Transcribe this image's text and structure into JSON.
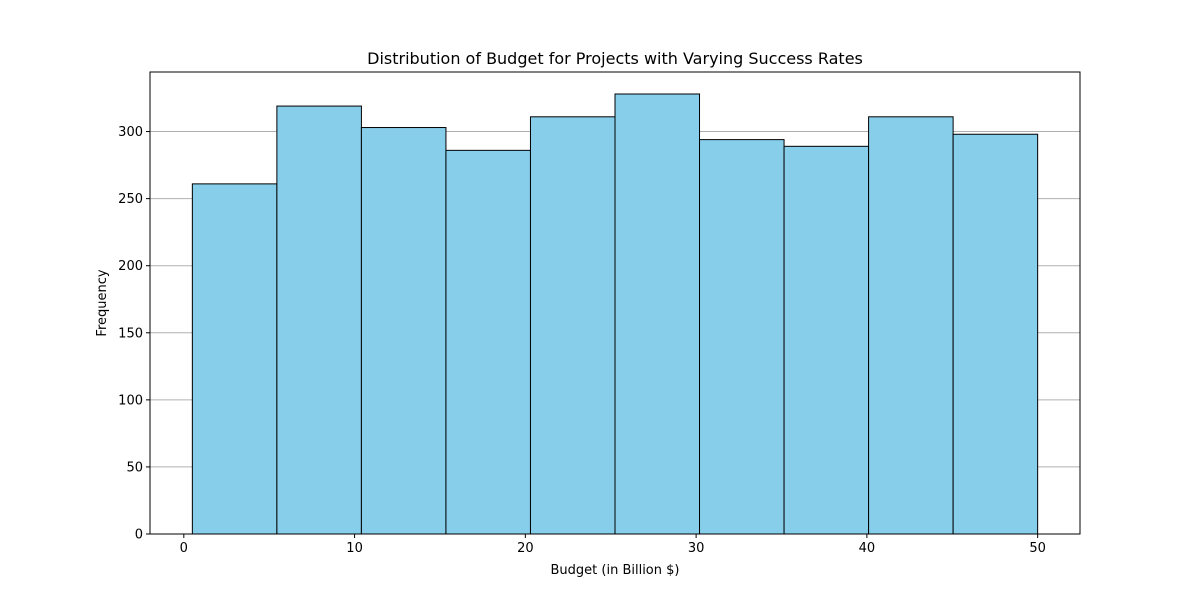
{
  "chart_data": {
    "type": "bar",
    "subtype": "histogram",
    "title": "Distribution of Budget for Projects with Varying Success Rates",
    "xlabel": "Budget (in Billion $)",
    "ylabel": "Frequency",
    "bin_edges": [
      0.5,
      5.45,
      10.4,
      15.35,
      20.3,
      25.25,
      30.2,
      35.15,
      40.1,
      45.05,
      50.0
    ],
    "values": [
      261,
      319,
      303,
      286,
      311,
      328,
      294,
      289,
      311,
      298
    ],
    "xlim": [
      -1.98,
      52.48
    ],
    "ylim": [
      0,
      344.4
    ],
    "xticks": [
      0,
      10,
      20,
      30,
      40,
      50
    ],
    "yticks": [
      0,
      50,
      100,
      150,
      200,
      250,
      300
    ],
    "xtick_labels": [
      "0",
      "10",
      "20",
      "30",
      "40",
      "50"
    ],
    "ytick_labels": [
      "0",
      "50",
      "100",
      "150",
      "200",
      "250",
      "300"
    ],
    "grid": "y",
    "bar_color": "#87ceeb",
    "edge_color": "#000000",
    "grid_color": "#b0b0b0"
  }
}
